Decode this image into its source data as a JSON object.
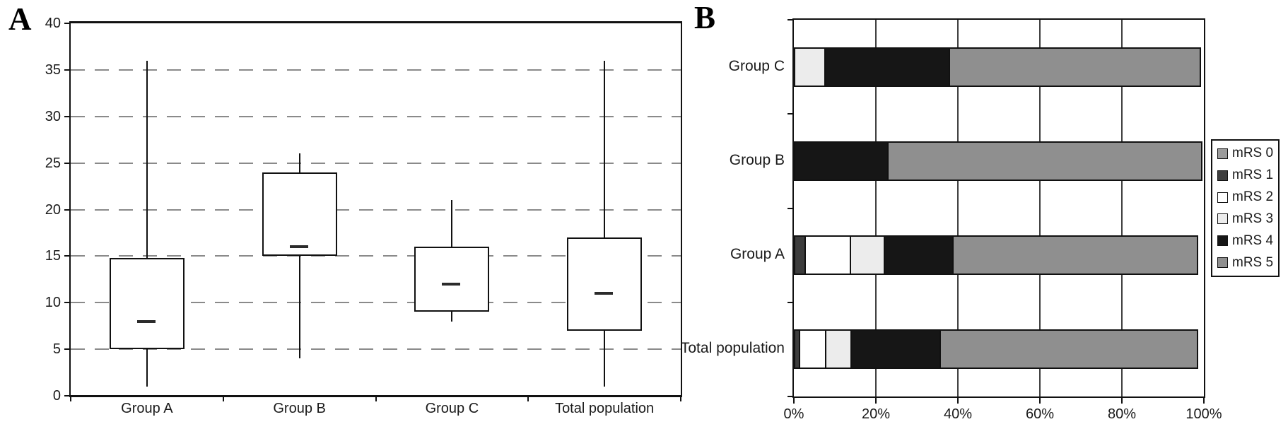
{
  "figure": {
    "background": "#ffffff",
    "panel_a_label": "A",
    "panel_b_label": "B"
  },
  "chart_data": [
    {
      "type": "box",
      "panel_label": "A",
      "orientation": "vertical",
      "categories": [
        "Group A",
        "Group B",
        "Group C",
        "Total population"
      ],
      "ylim": [
        0,
        40
      ],
      "yticks": [
        0,
        5,
        10,
        15,
        20,
        25,
        30,
        35,
        40
      ],
      "grid": "dashed-horizontal",
      "grid_color": "#8a8a8a",
      "box_fill": "#ffffff",
      "line_color": "#111111",
      "mean_marker": "dash",
      "boxes": [
        {
          "category": "Group A",
          "whisker_low": 1,
          "q1": 5,
          "mean": 8,
          "q3": 14.8,
          "whisker_high": 36
        },
        {
          "category": "Group B",
          "whisker_low": 4,
          "q1": 15,
          "mean": 16,
          "q3": 24,
          "whisker_high": 26
        },
        {
          "category": "Group C",
          "whisker_low": 8,
          "q1": 9,
          "mean": 12,
          "q3": 16,
          "whisker_high": 21
        },
        {
          "category": "Total population",
          "whisker_low": 1,
          "q1": 7,
          "mean": 11,
          "q3": 17,
          "whisker_high": 36
        }
      ]
    },
    {
      "type": "bar",
      "variant": "horizontal-stacked-100",
      "panel_label": "B",
      "categories": [
        "Group C",
        "Group B",
        "Group A",
        "Total population"
      ],
      "xlim": [
        0,
        100
      ],
      "xtick_labels": [
        "0%",
        "20%",
        "40%",
        "60%",
        "80%",
        "100%"
      ],
      "grid": "solid-vertical",
      "legend_position": "right",
      "legend": [
        {
          "label": "mRS 0",
          "color": "#9c9c9c"
        },
        {
          "label": "mRS 1",
          "color": "#3d3d3d"
        },
        {
          "label": "mRS 2",
          "color": "#ffffff"
        },
        {
          "label": "mRS 3",
          "color": "#ececec"
        },
        {
          "label": "mRS 4",
          "color": "#161616"
        },
        {
          "label": "mRS 5",
          "color": "#8f8f8f"
        }
      ],
      "series": [
        {
          "name": "mRS 0",
          "values": [
            0,
            0,
            0,
            0
          ]
        },
        {
          "name": "mRS 1",
          "values": [
            0,
            0,
            2.9,
            1.6
          ]
        },
        {
          "name": "mRS 2",
          "values": [
            0,
            0,
            11.4,
            6.6
          ]
        },
        {
          "name": "mRS 3",
          "values": [
            7.7,
            0,
            8.6,
            6.6
          ]
        },
        {
          "name": "mRS 4",
          "values": [
            30.8,
            23.1,
            17.1,
            22.1
          ]
        },
        {
          "name": "mRS 5",
          "values": [
            61.5,
            76.9,
            60.0,
            63.1
          ]
        }
      ],
      "unit": "%"
    }
  ]
}
